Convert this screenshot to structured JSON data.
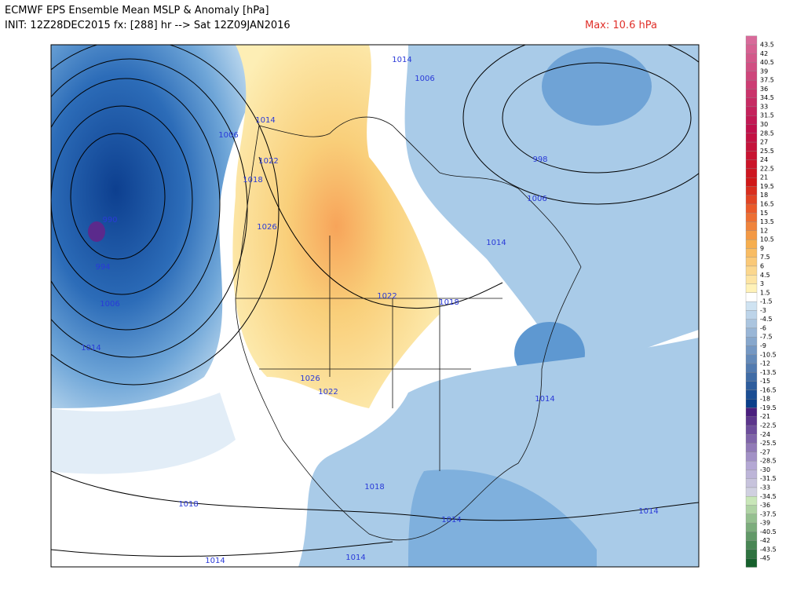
{
  "header": {
    "title": "ECMWF EPS Ensemble Mean MSLP & Anomaly [hPa]",
    "subtitle": "INIT: 12Z28DEC2015 fx: [288] hr --> Sat 12Z09JAN2016",
    "max_label": "Max: 10.6 hPa"
  },
  "map": {
    "contour_labels": [
      "1014",
      "1006",
      "1014",
      "1006",
      "1022",
      "1018",
      "990",
      "1026",
      "998",
      "1006",
      "1014",
      "994",
      "1006",
      "1022",
      "1018",
      "1014",
      "1026",
      "1022",
      "1014",
      "1018",
      "1018",
      "1014",
      "1014",
      "1014",
      "1014"
    ]
  },
  "colorbar": {
    "labels": [
      "43.5",
      "42",
      "40.5",
      "39",
      "37.5",
      "36",
      "34.5",
      "33",
      "31.5",
      "30",
      "28.5",
      "27",
      "25.5",
      "24",
      "22.5",
      "21",
      "19.5",
      "18",
      "16.5",
      "15",
      "13.5",
      "12",
      "10.5",
      "9",
      "7.5",
      "6",
      "4.5",
      "3",
      "1.5",
      "-1.5",
      "-3",
      "-4.5",
      "-6",
      "-7.5",
      "-9",
      "-10.5",
      "-12",
      "-13.5",
      "-15",
      "-16.5",
      "-18",
      "-19.5",
      "-21",
      "-22.5",
      "-24",
      "-25.5",
      "-27",
      "-28.5",
      "-30",
      "-31.5",
      "-33",
      "-34.5",
      "-36",
      "-37.5",
      "-39",
      "-40.5",
      "-42",
      "-43.5",
      "-45"
    ]
  }
}
